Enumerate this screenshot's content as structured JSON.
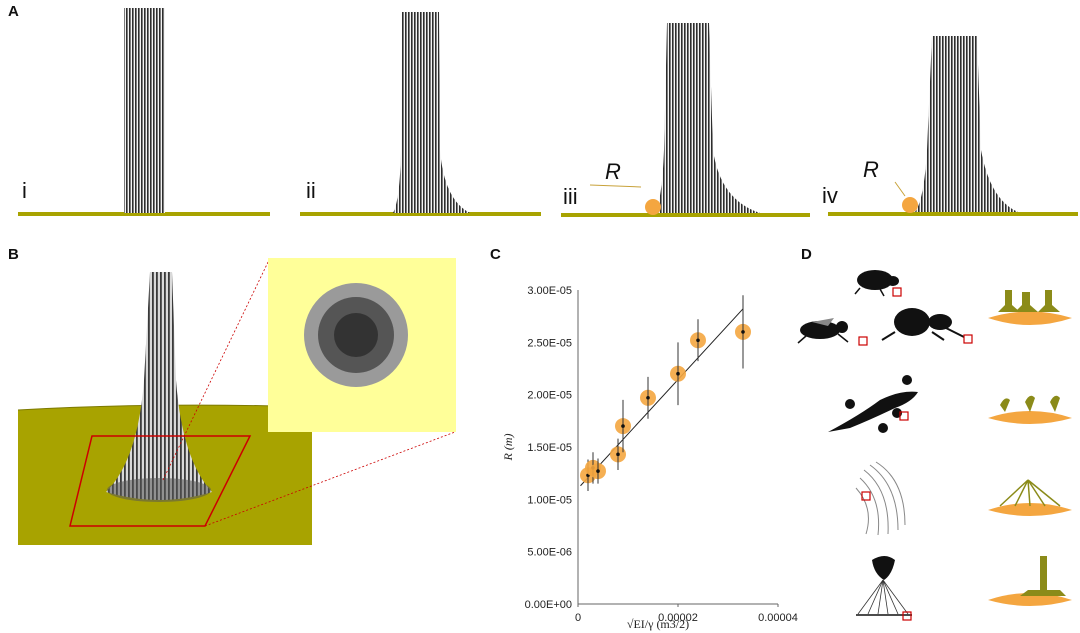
{
  "panels": {
    "a": {
      "letter": "A",
      "sub": [
        "i",
        "ii",
        "iii",
        "iv"
      ],
      "r_label": "R"
    },
    "b": {
      "letter": "B"
    },
    "c": {
      "letter": "C"
    },
    "d": {
      "letter": "D"
    }
  },
  "colors": {
    "substrate": "#a8a300",
    "substrate_dark": "#7d7a00",
    "droplet": "#f4a640",
    "zoom_bg": "#ffff99",
    "frame": "#cc0000",
    "fibers": "#333333"
  },
  "chart_data": {
    "type": "scatter",
    "xlabel": "√EI/γ (m3/2)",
    "ylabel": "R (m)",
    "xlim": [
      0,
      4e-05
    ],
    "ylim": [
      0,
      3e-05
    ],
    "x_ticks": [
      "0",
      "0.00002",
      "0.00004"
    ],
    "y_ticks": [
      "0.00E+00",
      "5.00E-06",
      "1.00E-05",
      "1.50E-05",
      "2.00E-05",
      "2.50E-05",
      "3.00E-05"
    ],
    "points": [
      {
        "x": 2e-06,
        "y": 1.23e-05,
        "err": 1.5e-06
      },
      {
        "x": 3e-06,
        "y": 1.3e-05,
        "err": 1.5e-06
      },
      {
        "x": 4e-06,
        "y": 1.27e-05,
        "err": 1.2e-06
      },
      {
        "x": 8e-06,
        "y": 1.43e-05,
        "err": 1.5e-06
      },
      {
        "x": 9e-06,
        "y": 1.7e-05,
        "err": 2.5e-06
      },
      {
        "x": 1.4e-05,
        "y": 1.97e-05,
        "err": 2e-06
      },
      {
        "x": 2e-05,
        "y": 2.2e-05,
        "err": 3e-06
      },
      {
        "x": 2.4e-05,
        "y": 2.52e-05,
        "err": 2e-06
      },
      {
        "x": 3.3e-05,
        "y": 2.6e-05,
        "err": 3.5e-06
      }
    ],
    "fit_line": {
      "x": [
        5e-07,
        3.3e-05
      ],
      "y": [
        1.13e-05,
        2.82e-05
      ]
    }
  }
}
